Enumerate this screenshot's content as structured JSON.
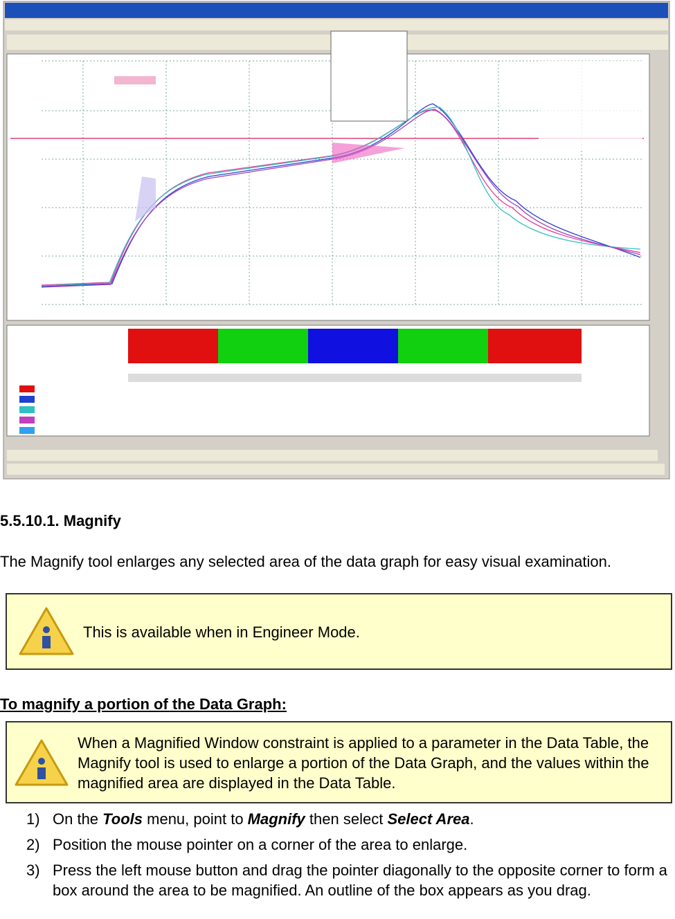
{
  "heading": "5.5.10.1. Magnify",
  "intro": "The Magnify tool enlarges any selected area of the data graph for easy visual examination.",
  "note1": "This is available when in Engineer Mode.",
  "subheading": "To magnify a portion of the Data Graph:",
  "note2": "When a Magnified Window constraint is applied to a parameter in the Data Table, the Magnify tool is used to enlarge a portion of the Data Graph, and the values within the magnified area are displayed in the Data Table.",
  "steps": [
    {
      "number": "1)",
      "parts": [
        "On the ",
        "Tools",
        " menu, point to ",
        "Magnify",
        " then select ",
        "Select Area",
        "."
      ]
    },
    {
      "number": "2)",
      "parts": [
        "Position the mouse pointer on a corner of the area to enlarge."
      ]
    },
    {
      "number": "3)",
      "parts": [
        "Press the left mouse button and drag the pointer diagonally to the opposite corner to form a box around the area to be magnified. An outline of the box appears as you drag."
      ]
    }
  ]
}
